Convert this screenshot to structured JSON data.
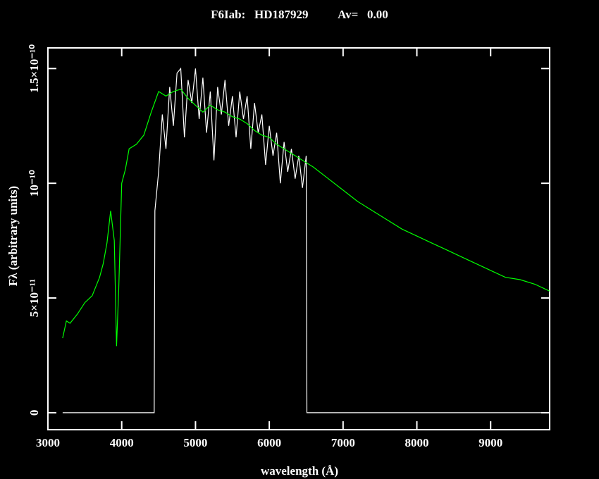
{
  "chart_data": {
    "type": "line",
    "title": "F6Iab:   HD187929          Av=   0.00",
    "x_label": "wavelength (Å)",
    "y_label": "Fλ (arbitrary units)",
    "xlim": [
      3000,
      9800
    ],
    "ylim": [
      -7.4e-12,
      1.59e-10
    ],
    "xticks": [
      3000,
      4000,
      5000,
      6000,
      7000,
      8000,
      9000
    ],
    "yticks": [
      0,
      {
        "value": 5e-11,
        "label": "5×10⁻¹¹"
      },
      {
        "value": 1e-10,
        "label": "10⁻¹⁰"
      },
      {
        "value": 1.5e-10,
        "label": "1.5×10⁻¹⁰"
      }
    ],
    "series": [
      {
        "color": "#00ff00",
        "x": [
          3200,
          3250,
          3300,
          3400,
          3500,
          3600,
          3700,
          3750,
          3800,
          3850,
          3900,
          3930,
          3960,
          4000,
          4050,
          4100,
          4200,
          4300,
          4400,
          4500,
          4600,
          4700,
          4800,
          4900,
          5000,
          5100,
          5200,
          5300,
          5400,
          5500,
          5600,
          5700,
          5800,
          5900,
          6000,
          6100,
          6200,
          6300,
          6400,
          6500,
          6600,
          6800,
          7000,
          7200,
          7400,
          7600,
          7800,
          8000,
          8200,
          8400,
          8600,
          8800,
          9000,
          9200,
          9400,
          9600,
          9800
        ],
        "values": [
          3.25e-11,
          4e-11,
          3.9e-11,
          4.3e-11,
          4.8e-11,
          5.1e-11,
          5.9e-11,
          6.5e-11,
          7.4e-11,
          8.8e-11,
          7.5e-11,
          2.9e-11,
          5.4e-11,
          1e-10,
          1.06e-10,
          1.15e-10,
          1.17e-10,
          1.21e-10,
          1.31e-10,
          1.4e-10,
          1.38e-10,
          1.4e-10,
          1.41e-10,
          1.37e-10,
          1.34e-10,
          1.31e-10,
          1.34e-10,
          1.32e-10,
          1.31e-10,
          1.29e-10,
          1.28e-10,
          1.26e-10,
          1.23e-10,
          1.21e-10,
          1.2e-10,
          1.17e-10,
          1.15e-10,
          1.13e-10,
          1.11e-10,
          1.09e-10,
          1.07e-10,
          1.02e-10,
          9.7e-11,
          9.2e-11,
          8.8e-11,
          8.4e-11,
          8e-11,
          7.7e-11,
          7.4e-11,
          7.1e-11,
          6.8e-11,
          6.5e-11,
          6.2e-11,
          5.9e-11,
          5.8e-11,
          5.6e-11,
          5.3e-11
        ]
      },
      {
        "color": "#ffffff",
        "x": [
          3200,
          4440,
          4450,
          4500,
          4550,
          4600,
          4650,
          4700,
          4750,
          4800,
          4850,
          4900,
          4950,
          5000,
          5050,
          5100,
          5150,
          5200,
          5250,
          5300,
          5350,
          5400,
          5450,
          5500,
          5550,
          5600,
          5650,
          5700,
          5750,
          5800,
          5850,
          5900,
          5950,
          6000,
          6050,
          6100,
          6150,
          6200,
          6250,
          6300,
          6350,
          6400,
          6450,
          6500,
          6510,
          9800
        ],
        "values": [
          0,
          0,
          8.8e-11,
          1.05e-10,
          1.3e-10,
          1.15e-10,
          1.42e-10,
          1.25e-10,
          1.48e-10,
          1.5e-10,
          1.2e-10,
          1.45e-10,
          1.35e-10,
          1.5e-10,
          1.28e-10,
          1.46e-10,
          1.22e-10,
          1.4e-10,
          1.1e-10,
          1.42e-10,
          1.3e-10,
          1.45e-10,
          1.25e-10,
          1.38e-10,
          1.2e-10,
          1.4e-10,
          1.28e-10,
          1.38e-10,
          1.15e-10,
          1.35e-10,
          1.22e-10,
          1.3e-10,
          1.08e-10,
          1.25e-10,
          1.12e-10,
          1.22e-10,
          1e-10,
          1.18e-10,
          1.05e-10,
          1.15e-10,
          1.02e-10,
          1.12e-10,
          9.8e-11,
          1.12e-10,
          0,
          0
        ]
      }
    ]
  }
}
